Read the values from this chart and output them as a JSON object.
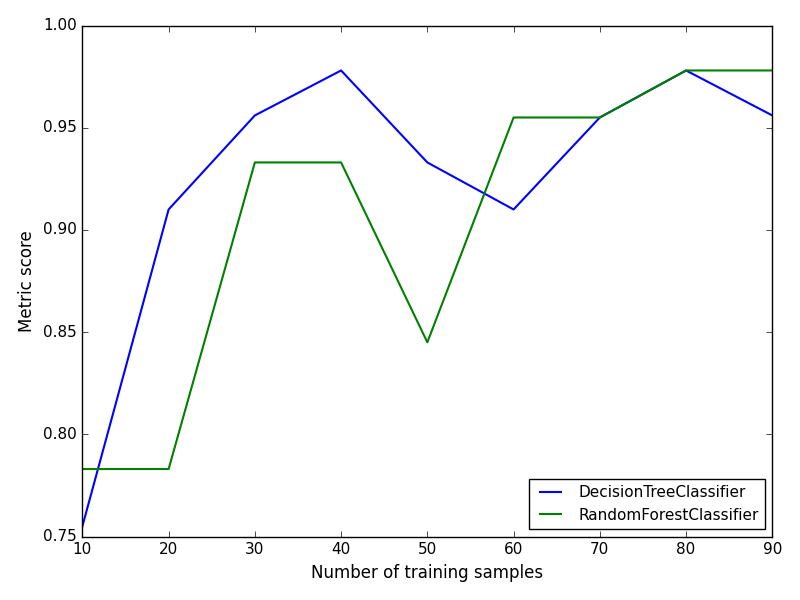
{
  "x": [
    10,
    20,
    30,
    40,
    50,
    60,
    70,
    80,
    90
  ],
  "decision_tree_y": [
    0.755,
    0.91,
    0.956,
    0.978,
    0.933,
    0.91,
    0.955,
    0.978,
    0.956
  ],
  "random_forest_y": [
    0.783,
    0.783,
    0.933,
    0.933,
    0.845,
    0.955,
    0.955,
    0.978,
    0.978
  ],
  "decision_tree_color": "blue",
  "random_forest_color": "green",
  "decision_tree_label": "DecisionTreeClassifier",
  "random_forest_label": "RandomForestClassifier",
  "xlabel": "Number of training samples",
  "ylabel": "Metric score",
  "xlim": [
    10,
    90
  ],
  "ylim": [
    0.75,
    1.0
  ],
  "xticks": [
    10,
    20,
    30,
    40,
    50,
    60,
    70,
    80,
    90
  ],
  "yticks": [
    0.75,
    0.8,
    0.85,
    0.9,
    0.95,
    1.0
  ],
  "legend_loc": "lower right",
  "line_width": 1.5,
  "figsize": [
    8.0,
    6.0
  ],
  "dpi": 100
}
